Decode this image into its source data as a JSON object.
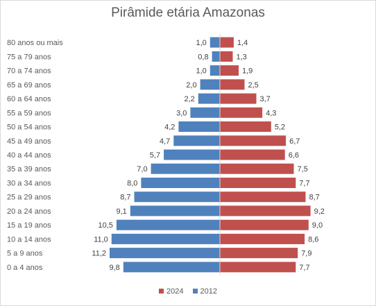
{
  "chart_data": {
    "type": "bar",
    "orientation": "horizontal",
    "title": "Pirâmide etária Amazonas",
    "categories": [
      "80 anos ou mais",
      "75 a 79 anos",
      "70 a 74 anos",
      "65 a 69 anos",
      "60 a 64 anos",
      "55 a 59 anos",
      "50 a 54 anos",
      "45 a 49 anos",
      "40 a 44 anos",
      "35 a 39 anos",
      "30 a 34 anos",
      "25 a 29 anos",
      "20 a 24 anos",
      "15 a 19 anos",
      "10 a 14 anos",
      "5 a 9 anos",
      "0 a 4 anos"
    ],
    "series": [
      {
        "name": "2024",
        "color": "#c0504d",
        "side": "right",
        "values": [
          1.4,
          1.3,
          1.9,
          2.5,
          3.7,
          4.3,
          5.2,
          6.7,
          6.6,
          7.5,
          7.7,
          8.7,
          9.2,
          9.0,
          8.6,
          7.9,
          7.7
        ],
        "labels": [
          "1,4",
          "1,3",
          "1,9",
          "2,5",
          "3,7",
          "4,3",
          "5,2",
          "6,7",
          "6,6",
          "7,5",
          "7,7",
          "8,7",
          "9,2",
          "9,0",
          "8,6",
          "7,9",
          "7,7"
        ]
      },
      {
        "name": "2012",
        "color": "#4f81bd",
        "side": "left",
        "values": [
          1.0,
          0.8,
          1.0,
          2.0,
          2.2,
          3.0,
          4.2,
          4.7,
          5.7,
          7.0,
          8.0,
          8.7,
          9.1,
          10.5,
          11.0,
          11.2,
          9.8
        ],
        "labels": [
          "1,0",
          "0,8",
          "1,0",
          "2,0",
          "2,2",
          "3,0",
          "4,2",
          "4,7",
          "5,7",
          "7,0",
          "8,0",
          "8,7",
          "9,1",
          "10,5",
          "11,0",
          "11,2",
          "9,8"
        ]
      }
    ],
    "legend": [
      {
        "name": "2024",
        "color": "#c0504d"
      },
      {
        "name": "2012",
        "color": "#4f81bd"
      }
    ],
    "legend_position": "bottom",
    "grid": false
  }
}
